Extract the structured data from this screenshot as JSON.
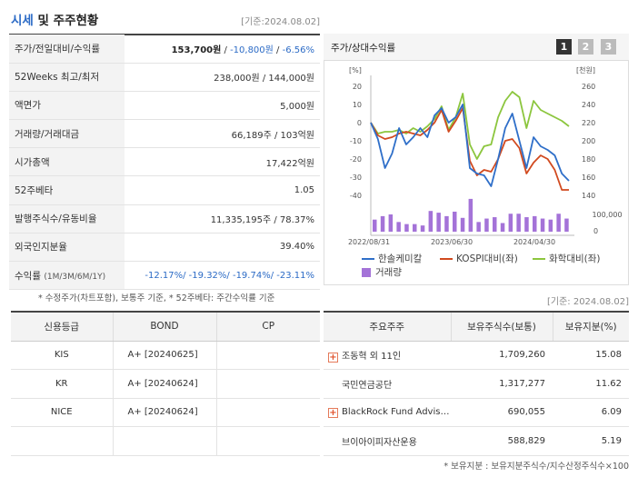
{
  "header": {
    "title_main": "시세",
    "title_rest": "및 주주현황",
    "basis": "[기준:2024.08.02]"
  },
  "info_rows": [
    {
      "label": "주가/전일대비/수익률",
      "v1": "153,700원",
      "v2": "-10,800원",
      "v3": "-6.56%"
    },
    {
      "label": "52Weeks 최고/최저",
      "value": "238,000원 / 144,000원"
    },
    {
      "label": "액면가",
      "value": "5,000원"
    },
    {
      "label": "거래량/거래대금",
      "value": "66,189주 / 103억원"
    },
    {
      "label": "시가총액",
      "value": "17,422억원"
    },
    {
      "label": "52주베타",
      "value": "1.05"
    },
    {
      "label": "발행주식수/유동비율",
      "value": "11,335,195주 / 78.37%"
    },
    {
      "label": "외국인지분율",
      "value": "39.40%"
    },
    {
      "label": "수익률",
      "label_small": "(1M/3M/6M/1Y)",
      "value": "-12.17%/ -19.32%/ -19.74%/ -23.11%"
    }
  ],
  "note1": "* 수정주가(차트포함), 보통주 기준, * 52주베타: 주간수익률 기준",
  "chart": {
    "title": "주가/상대수익률",
    "tabs": [
      "1",
      "2",
      "3"
    ],
    "left_unit": "[%]",
    "right_unit": "[천원]",
    "vol_label": "100,000",
    "vol_zero": "0",
    "legend": {
      "s1": "한솔케미칼",
      "s2": "KOSPI대비(좌)",
      "s3": "화학대비(좌)",
      "vol": "거래량"
    },
    "colors": {
      "s1": "#2f6fc9",
      "s2": "#d14a1f",
      "s3": "#8cc63e",
      "vol": "#a473d8"
    }
  },
  "chart_data": {
    "type": "line",
    "x_ticks": [
      "2022/08/31",
      "2023/06/30",
      "2024/04/30"
    ],
    "y_left_ticks": [
      "20",
      "10",
      "0",
      "-10",
      "-20",
      "-30",
      "-40"
    ],
    "y_right_ticks": [
      "260",
      "240",
      "220",
      "200",
      "180",
      "160",
      "140"
    ],
    "y_left_range": [
      -40,
      20
    ],
    "series": [
      {
        "name": "한솔케미칼",
        "values": [
          0,
          -9,
          -25,
          -17,
          -3,
          -12,
          -8,
          -3,
          -8,
          4,
          8,
          0,
          3,
          10,
          -25,
          -28,
          -29,
          -35,
          -20,
          -3,
          5,
          -10,
          -25,
          -8,
          -13,
          -15,
          -18,
          -28,
          -32
        ]
      },
      {
        "name": "KOSPI대비(좌)",
        "values": [
          0,
          -7,
          -9,
          -8,
          -6,
          -5,
          -6,
          -7,
          -4,
          0,
          7,
          -5,
          1,
          8,
          -21,
          -29,
          -26,
          -27,
          -20,
          -10,
          -9,
          -14,
          -28,
          -22,
          -18,
          -20,
          -26,
          -37,
          -37
        ]
      },
      {
        "name": "화학대비(좌)",
        "values": [
          0,
          -6,
          -5,
          -5,
          -4,
          -6,
          -3,
          -5,
          -2,
          2,
          9,
          -4,
          3,
          16,
          -12,
          -20,
          -13,
          -12,
          3,
          12,
          17,
          14,
          -3,
          12,
          7,
          5,
          3,
          1,
          -2
        ]
      }
    ],
    "volume": [
      35,
      45,
      50,
      28,
      22,
      22,
      18,
      60,
      55,
      45,
      58,
      40,
      95,
      28,
      38,
      42,
      25,
      52,
      52,
      42,
      45,
      38,
      35,
      52,
      38
    ]
  },
  "basis2": "[기준: 2024.08.02]",
  "credit": {
    "headers": [
      "신용등급",
      "BOND",
      "CP"
    ],
    "rows": [
      {
        "agency": "KIS",
        "bond": "A+ [20240625]",
        "cp": ""
      },
      {
        "agency": "KR",
        "bond": "A+ [20240624]",
        "cp": ""
      },
      {
        "agency": "NICE",
        "bond": "A+ [20240624]",
        "cp": ""
      },
      {
        "agency": "",
        "bond": "",
        "cp": ""
      }
    ]
  },
  "holders": {
    "headers": [
      "주요주주",
      "보유주식수(보통)",
      "보유지분(%)"
    ],
    "rows": [
      {
        "name": "조동혁 외 11인",
        "shares": "1,709,260",
        "pct": "15.08",
        "expand": true
      },
      {
        "name": "국민연금공단",
        "shares": "1,317,277",
        "pct": "11.62",
        "expand": false
      },
      {
        "name": "BlackRock Fund Advis…",
        "shares": "690,055",
        "pct": "6.09",
        "expand": true
      },
      {
        "name": "브이아이피자산운용",
        "shares": "588,829",
        "pct": "5.19",
        "expand": false
      }
    ]
  },
  "note2": "* 보유지분 : 보유지분주식수/지수산정주식수×100"
}
